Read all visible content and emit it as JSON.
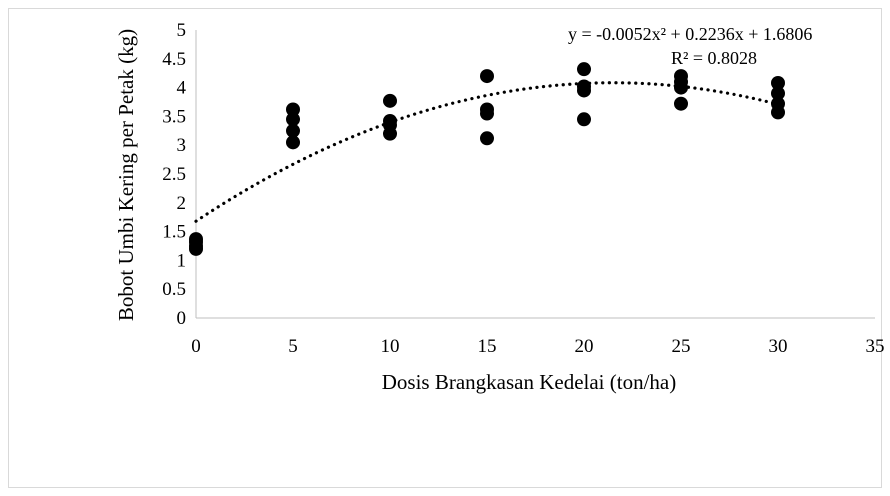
{
  "chart_data": {
    "type": "scatter",
    "title": "",
    "xlabel": "Dosis Brangkasan Kedelai (ton/ha)",
    "ylabel": "Bobot Umbi Kering per Petak (kg)",
    "xlim": [
      0,
      35
    ],
    "ylim": [
      0,
      5
    ],
    "x_ticks": [
      0,
      5,
      10,
      15,
      20,
      25,
      30,
      35
    ],
    "y_ticks": [
      0,
      0.5,
      1,
      1.5,
      2,
      2.5,
      3,
      3.5,
      4,
      4.5,
      5
    ],
    "x_tick_labels": [
      "0",
      "5",
      "10",
      "15",
      "20",
      "25",
      "30",
      "35"
    ],
    "y_tick_labels": [
      "0",
      "0.5",
      "1",
      "1.5",
      "2",
      "2.5",
      "3",
      "3.5",
      "4",
      "4.5",
      "5"
    ],
    "grid": false,
    "legend": "none",
    "series": [
      {
        "marker_color": "#000000",
        "points": [
          {
            "x": 0,
            "y": 1.37
          },
          {
            "x": 0,
            "y": 1.32
          },
          {
            "x": 0,
            "y": 1.25
          },
          {
            "x": 0,
            "y": 1.2
          },
          {
            "x": 5,
            "y": 3.62
          },
          {
            "x": 5,
            "y": 3.45
          },
          {
            "x": 5,
            "y": 3.25
          },
          {
            "x": 5,
            "y": 3.05
          },
          {
            "x": 10,
            "y": 3.77
          },
          {
            "x": 10,
            "y": 3.42
          },
          {
            "x": 10,
            "y": 3.35
          },
          {
            "x": 10,
            "y": 3.2
          },
          {
            "x": 15,
            "y": 4.2
          },
          {
            "x": 15,
            "y": 3.62
          },
          {
            "x": 15,
            "y": 3.55
          },
          {
            "x": 15,
            "y": 3.12
          },
          {
            "x": 20,
            "y": 4.32
          },
          {
            "x": 20,
            "y": 4.02
          },
          {
            "x": 20,
            "y": 3.95
          },
          {
            "x": 20,
            "y": 3.45
          },
          {
            "x": 25,
            "y": 4.2
          },
          {
            "x": 25,
            "y": 4.1
          },
          {
            "x": 25,
            "y": 4.0
          },
          {
            "x": 25,
            "y": 3.72
          },
          {
            "x": 30,
            "y": 4.08
          },
          {
            "x": 30,
            "y": 3.9
          },
          {
            "x": 30,
            "y": 3.72
          },
          {
            "x": 30,
            "y": 3.57
          }
        ]
      }
    ],
    "trendline": {
      "type": "polynomial",
      "order": 2,
      "coefficients": {
        "a": -0.0052,
        "b": 0.2236,
        "c": 1.6806
      },
      "x_range": [
        0,
        30
      ],
      "style": "dotted",
      "color": "#000000",
      "equation_text": "y = -0.0052x² + 0.2236x + 1.6806",
      "r2_text": "R² = 0.8028"
    }
  }
}
